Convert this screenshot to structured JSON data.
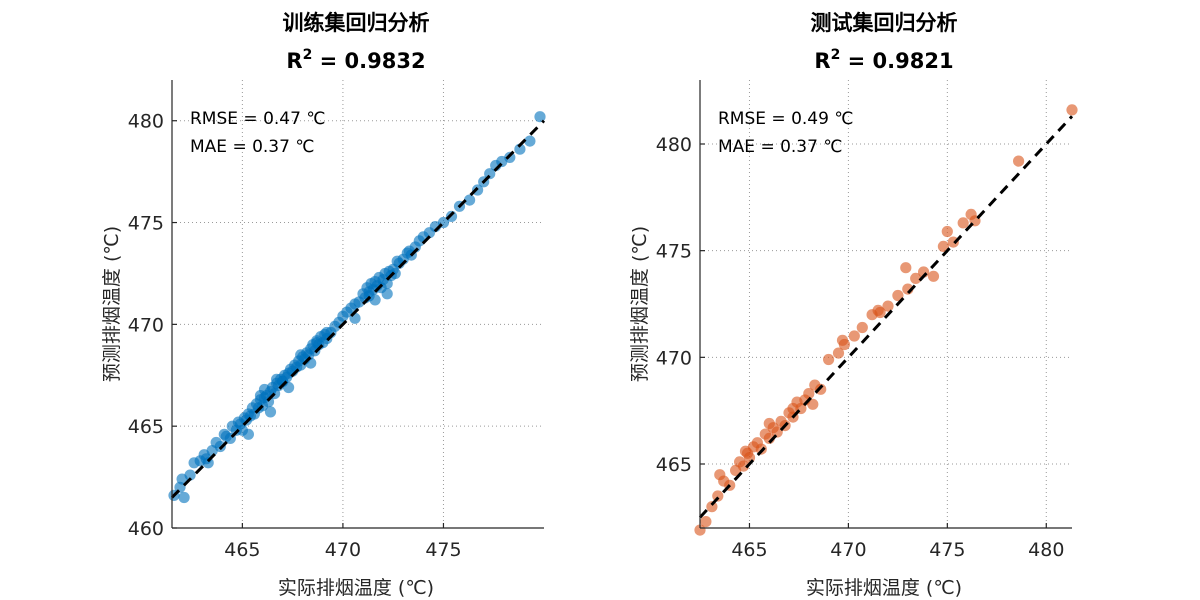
{
  "chart_data": [
    {
      "type": "scatter",
      "title": "训练集回归分析",
      "r2_label": "R",
      "r2_sup": "2",
      "r2_value": " = 0.9832",
      "xlabel": "实际排烟温度 (℃)",
      "ylabel": "预测排烟温度 (℃)",
      "xlim": [
        461.5,
        480.0
      ],
      "ylim": [
        460.0,
        482.0
      ],
      "xticks": [
        "465",
        "470",
        "475"
      ],
      "yticks": [
        "460",
        "465",
        "470",
        "475",
        "480"
      ],
      "annotations": [
        "RMSE = 0.47 ℃",
        "MAE = 0.37 ℃"
      ],
      "point_color": "#0072bd",
      "grid": true,
      "fit_line": [
        [
          461.5,
          461.5
        ],
        [
          480.0,
          480.0
        ]
      ],
      "x": [
        461.6,
        461.9,
        462.1,
        462.4,
        462.6,
        462.9,
        463.1,
        463.3,
        463.5,
        463.7,
        463.9,
        464.1,
        464.2,
        464.4,
        464.5,
        464.7,
        464.8,
        464.9,
        465.0,
        465.1,
        465.2,
        465.3,
        465.4,
        465.5,
        465.6,
        465.7,
        465.8,
        465.9,
        466.0,
        466.1,
        466.2,
        466.3,
        466.4,
        466.5,
        466.6,
        466.7,
        466.8,
        466.9,
        467.0,
        467.1,
        467.2,
        467.3,
        467.4,
        467.5,
        467.6,
        467.7,
        467.8,
        467.9,
        468.0,
        468.1,
        468.2,
        468.3,
        468.4,
        468.5,
        468.6,
        468.7,
        468.8,
        468.9,
        469.0,
        469.1,
        469.2,
        469.4,
        469.6,
        469.8,
        470.0,
        470.2,
        470.4,
        470.6,
        470.8,
        471.0,
        471.1,
        471.2,
        471.3,
        471.4,
        471.5,
        471.6,
        471.7,
        471.8,
        471.9,
        472.0,
        472.1,
        472.2,
        472.3,
        472.4,
        472.5,
        472.6,
        472.8,
        473.0,
        473.2,
        473.4,
        473.6,
        473.8,
        474.0,
        474.3,
        474.6,
        475.0,
        475.4,
        475.8,
        476.3,
        476.7,
        477.0,
        477.3,
        477.6,
        477.9,
        478.3,
        478.8,
        479.3,
        479.8,
        462.0,
        463.2,
        465.3,
        466.1,
        466.7,
        467.3,
        467.9,
        468.4,
        469.2,
        470.6,
        471.6,
        472.7,
        473.3,
        466.4,
        465.9,
        467.0,
        468.7,
        471.3,
        472.2
      ],
      "y": [
        461.6,
        462.0,
        461.5,
        462.6,
        463.2,
        463.3,
        463.6,
        463.2,
        463.8,
        464.2,
        464.0,
        464.6,
        464.5,
        464.4,
        465.0,
        464.8,
        465.2,
        465.1,
        464.8,
        465.4,
        465.3,
        465.6,
        465.5,
        465.9,
        465.6,
        466.1,
        465.9,
        466.3,
        466.0,
        466.4,
        466.5,
        466.2,
        466.7,
        466.9,
        466.6,
        467.1,
        467.0,
        467.3,
        467.2,
        467.5,
        467.4,
        467.6,
        467.8,
        467.7,
        468.0,
        467.9,
        468.2,
        468.0,
        468.4,
        468.3,
        468.6,
        468.5,
        468.8,
        469.0,
        468.7,
        469.2,
        469.0,
        469.4,
        469.1,
        469.5,
        469.3,
        469.6,
        469.9,
        470.1,
        470.4,
        470.6,
        470.8,
        471.0,
        471.1,
        471.5,
        471.3,
        471.8,
        471.4,
        472.0,
        471.7,
        472.1,
        471.9,
        472.3,
        471.8,
        472.2,
        472.5,
        472.0,
        472.6,
        472.4,
        472.7,
        472.5,
        473.0,
        473.2,
        473.5,
        473.4,
        473.8,
        474.1,
        474.3,
        474.5,
        474.8,
        475.0,
        475.3,
        475.8,
        476.1,
        476.6,
        477.0,
        477.4,
        477.8,
        478.0,
        478.2,
        478.6,
        479.0,
        480.2,
        462.4,
        463.4,
        464.6,
        466.8,
        467.3,
        466.9,
        468.5,
        468.1,
        469.6,
        470.3,
        471.2,
        473.1,
        473.6,
        465.7,
        466.5,
        467.2,
        469.1,
        471.6,
        471.5
      ]
    },
    {
      "type": "scatter",
      "title": "测试集回归分析",
      "r2_label": "R",
      "r2_sup": "2",
      "r2_value": " = 0.9821",
      "xlabel": "实际排烟温度 (℃)",
      "ylabel": "预测排烟温度 (℃)",
      "xlim": [
        462.5,
        481.3
      ],
      "ylim": [
        462.0,
        483.0
      ],
      "xticks": [
        "465",
        "470",
        "475",
        "480"
      ],
      "yticks": [
        "465",
        "470",
        "475",
        "480"
      ],
      "annotations": [
        "RMSE = 0.49 ℃",
        "MAE = 0.37 ℃"
      ],
      "point_color": "#d95319",
      "grid": true,
      "fit_line": [
        [
          462.5,
          462.5
        ],
        [
          481.3,
          481.3
        ]
      ],
      "x": [
        462.5,
        462.8,
        463.1,
        463.4,
        463.7,
        464.0,
        464.3,
        464.5,
        464.7,
        464.9,
        465.0,
        465.2,
        465.4,
        465.6,
        465.8,
        466.0,
        466.2,
        466.4,
        466.6,
        466.8,
        467.0,
        467.2,
        467.4,
        467.6,
        467.8,
        468.0,
        468.3,
        468.6,
        469.0,
        469.5,
        469.8,
        470.3,
        470.7,
        471.2,
        471.6,
        472.0,
        472.5,
        473.0,
        473.4,
        473.8,
        474.3,
        474.8,
        475.3,
        475.8,
        476.2,
        478.6,
        481.3,
        463.5,
        464.8,
        466.0,
        467.2,
        468.2,
        469.7,
        471.5,
        472.9,
        475.0,
        476.4
      ],
      "y": [
        461.9,
        462.3,
        463.0,
        463.5,
        464.2,
        464.0,
        464.7,
        465.1,
        464.9,
        465.5,
        465.3,
        465.8,
        466.0,
        465.7,
        466.4,
        466.2,
        466.7,
        466.5,
        467.0,
        466.8,
        467.4,
        467.2,
        467.9,
        467.6,
        468.0,
        468.3,
        468.7,
        468.5,
        469.9,
        470.2,
        470.6,
        471.0,
        471.4,
        472.0,
        472.1,
        472.4,
        472.9,
        473.2,
        473.7,
        474.0,
        473.8,
        475.2,
        475.4,
        476.3,
        476.7,
        479.2,
        481.6,
        464.5,
        465.6,
        466.9,
        467.6,
        467.8,
        470.8,
        472.2,
        474.2,
        475.9,
        476.4
      ]
    }
  ]
}
